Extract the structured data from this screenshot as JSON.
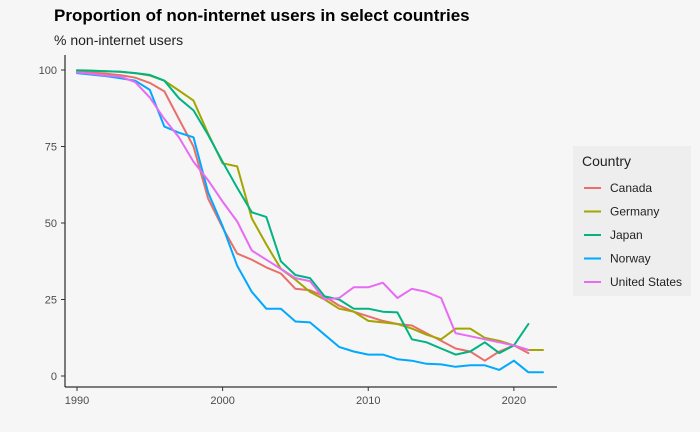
{
  "chart_data": {
    "type": "line",
    "title": "Proportion of non-internet users in select countries",
    "subtitle": "% non-internet users",
    "xlabel": "",
    "ylabel": "",
    "xlim": [
      1990,
      2022
    ],
    "ylim": [
      0,
      100
    ],
    "x_ticks": [
      1990,
      2000,
      2010,
      2020
    ],
    "y_ticks": [
      0,
      25,
      50,
      75,
      100
    ],
    "grid": false,
    "legend": {
      "title": "Country",
      "position": "right"
    },
    "series": [
      {
        "name": "Canada",
        "color": "#e8706a",
        "points": [
          [
            1990,
            99.5
          ],
          [
            1991,
            99.2
          ],
          [
            1992,
            98.8
          ],
          [
            1993,
            98.3
          ],
          [
            1994,
            97.5
          ],
          [
            1995,
            95.8
          ],
          [
            1996,
            93
          ],
          [
            1997,
            84
          ],
          [
            1998,
            75
          ],
          [
            1999,
            58
          ],
          [
            2000,
            48.5
          ],
          [
            2001,
            40
          ],
          [
            2002,
            38
          ],
          [
            2003,
            35.5
          ],
          [
            2004,
            33.5
          ],
          [
            2005,
            28.5
          ],
          [
            2006,
            28
          ],
          [
            2007,
            26
          ],
          [
            2008,
            23
          ],
          [
            2009,
            21
          ],
          [
            2010,
            19.5
          ],
          [
            2011,
            18
          ],
          [
            2012,
            17
          ],
          [
            2013,
            16.5
          ],
          [
            2014,
            14
          ],
          [
            2015,
            11.5
          ],
          [
            2016,
            9
          ],
          [
            2017,
            8
          ],
          [
            2018,
            5
          ],
          [
            2019,
            8
          ],
          [
            2020,
            10
          ],
          [
            2021,
            7.5
          ]
        ]
      },
      {
        "name": "Germany",
        "color": "#a3a500",
        "points": [
          [
            1990,
            99.8
          ],
          [
            1991,
            99.7
          ],
          [
            1992,
            99.6
          ],
          [
            1993,
            99.4
          ],
          [
            1994,
            99
          ],
          [
            1995,
            98.2
          ],
          [
            1996,
            96.5
          ],
          [
            1997,
            93.3
          ],
          [
            1998,
            90
          ],
          [
            1999,
            79.2
          ],
          [
            2000,
            69.5
          ],
          [
            2001,
            68.5
          ],
          [
            2002,
            51.5
          ],
          [
            2003,
            43
          ],
          [
            2004,
            35
          ],
          [
            2005,
            31.5
          ],
          [
            2006,
            27.5
          ],
          [
            2007,
            25
          ],
          [
            2008,
            22
          ],
          [
            2009,
            21
          ],
          [
            2010,
            18
          ],
          [
            2011,
            17.5
          ],
          [
            2012,
            17
          ],
          [
            2013,
            15.5
          ],
          [
            2014,
            13.5
          ],
          [
            2015,
            12
          ],
          [
            2016,
            15.5
          ],
          [
            2017,
            15.5
          ],
          [
            2018,
            12.5
          ],
          [
            2019,
            11.5
          ],
          [
            2020,
            10
          ],
          [
            2021,
            8.5
          ],
          [
            2022,
            8.5
          ]
        ]
      },
      {
        "name": "Japan",
        "color": "#00b382",
        "points": [
          [
            1990,
            99.9
          ],
          [
            1991,
            99.8
          ],
          [
            1992,
            99.6
          ],
          [
            1993,
            99.4
          ],
          [
            1994,
            99
          ],
          [
            1995,
            98.4
          ],
          [
            1996,
            96.5
          ],
          [
            1997,
            90.8
          ],
          [
            1998,
            86.8
          ],
          [
            1999,
            78.8
          ],
          [
            2000,
            70
          ],
          [
            2001,
            61.5
          ],
          [
            2002,
            53.5
          ],
          [
            2003,
            52
          ],
          [
            2004,
            37.5
          ],
          [
            2005,
            33
          ],
          [
            2006,
            32
          ],
          [
            2007,
            26
          ],
          [
            2008,
            25
          ],
          [
            2009,
            22
          ],
          [
            2010,
            22
          ],
          [
            2011,
            21
          ],
          [
            2012,
            20.8
          ],
          [
            2013,
            12
          ],
          [
            2014,
            11
          ],
          [
            2015,
            9
          ],
          [
            2016,
            7
          ],
          [
            2017,
            8
          ],
          [
            2018,
            11
          ],
          [
            2019,
            7.5
          ],
          [
            2020,
            10
          ],
          [
            2021,
            17
          ]
        ]
      },
      {
        "name": "Norway",
        "color": "#00a9ff",
        "points": [
          [
            1990,
            99
          ],
          [
            1991,
            98.5
          ],
          [
            1992,
            98
          ],
          [
            1993,
            97.3
          ],
          [
            1994,
            96.5
          ],
          [
            1995,
            93.5
          ],
          [
            1996,
            81.5
          ],
          [
            1997,
            79.5
          ],
          [
            1998,
            78
          ],
          [
            1999,
            60
          ],
          [
            2000,
            49
          ],
          [
            2001,
            36
          ],
          [
            2002,
            27.5
          ],
          [
            2003,
            22
          ],
          [
            2004,
            22
          ],
          [
            2005,
            17.8
          ],
          [
            2006,
            17.5
          ],
          [
            2007,
            13.5
          ],
          [
            2008,
            9.5
          ],
          [
            2009,
            8
          ],
          [
            2010,
            7
          ],
          [
            2011,
            7
          ],
          [
            2012,
            5.5
          ],
          [
            2013,
            5
          ],
          [
            2014,
            4
          ],
          [
            2015,
            3.8
          ],
          [
            2016,
            3
          ],
          [
            2017,
            3.5
          ],
          [
            2018,
            3.5
          ],
          [
            2019,
            2
          ],
          [
            2020,
            5
          ],
          [
            2021,
            1.2
          ],
          [
            2022,
            1.2
          ]
        ]
      },
      {
        "name": "United States",
        "color": "#e76bf3",
        "points": [
          [
            1990,
            99.2
          ],
          [
            1991,
            98.8
          ],
          [
            1992,
            98.2
          ],
          [
            1993,
            97.8
          ],
          [
            1994,
            96
          ],
          [
            1995,
            91
          ],
          [
            1996,
            84
          ],
          [
            1997,
            78
          ],
          [
            1998,
            70
          ],
          [
            1999,
            64
          ],
          [
            2000,
            57
          ],
          [
            2001,
            50.5
          ],
          [
            2002,
            41
          ],
          [
            2003,
            38
          ],
          [
            2004,
            35
          ],
          [
            2005,
            32
          ],
          [
            2006,
            31
          ],
          [
            2007,
            25
          ],
          [
            2008,
            25.5
          ],
          [
            2009,
            29
          ],
          [
            2010,
            29
          ],
          [
            2011,
            30.5
          ],
          [
            2012,
            25.5
          ],
          [
            2013,
            28.5
          ],
          [
            2014,
            27.5
          ],
          [
            2015,
            25.5
          ],
          [
            2016,
            14
          ],
          [
            2017,
            13
          ],
          [
            2018,
            12
          ],
          [
            2019,
            11
          ],
          [
            2020,
            10
          ],
          [
            2021,
            8.5
          ]
        ]
      }
    ]
  }
}
